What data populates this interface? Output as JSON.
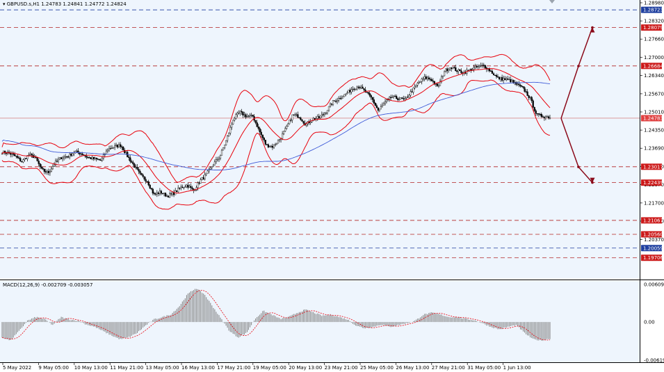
{
  "header": {
    "symbol": "GBPUSD.s,H1",
    "ohlc": "1.24783 1.24841 1.24772 1.24824"
  },
  "colors": {
    "background": "#eef5fd",
    "candle": "#000000",
    "bollinger": "#e8000b",
    "ma": "#3f5bd8",
    "resistance": "#b22222",
    "support": "#1f3f9f",
    "arrow": "#8b0a1a",
    "histogram": "#808080",
    "signal": "#e8000b"
  },
  "chart_data": [
    {
      "type": "candlestick",
      "title": "GBPUSD.s,H1",
      "ylim": [
        1.1932,
        1.2898
      ],
      "y_ticks": [
        "1.28980",
        "1.28320",
        "1.27660",
        "1.27000",
        "1.26340",
        "1.25670",
        "1.25010",
        "1.24350",
        "1.23690",
        "1.23030",
        "1.22370",
        "1.21700",
        "1.21040",
        "1.20370"
      ],
      "x_ticks": [
        "5 May 2022",
        "9 May 05:00",
        "10 May 13:00",
        "11 May 21:00",
        "13 May 05:00",
        "16 May 13:00",
        "17 May 21:00",
        "19 May 05:00",
        "20 May 13:00",
        "23 May 21:00",
        "25 May 05:00",
        "26 May 13:00",
        "27 May 21:00",
        "31 May 05:00",
        "1 Jun 13:00"
      ],
      "close_path": [
        1.2355,
        1.2352,
        1.234,
        1.232,
        1.2345,
        1.2336,
        1.229,
        1.228,
        1.2315,
        1.2336,
        1.234,
        1.2356,
        1.235,
        1.2335,
        1.233,
        1.2325,
        1.2365,
        1.2375,
        1.238,
        1.234,
        1.2305,
        1.227,
        1.225,
        1.22,
        1.221,
        1.2195,
        1.2205,
        1.2225,
        1.2235,
        1.2215,
        1.225,
        1.2275,
        1.231,
        1.234,
        1.24,
        1.2475,
        1.25,
        1.2485,
        1.2485,
        1.243,
        1.238,
        1.2375,
        1.24,
        1.244,
        1.249,
        1.2485,
        1.2455,
        1.2475,
        1.248,
        1.25,
        1.2535,
        1.255,
        1.2565,
        1.2585,
        1.2595,
        1.2575,
        1.255,
        1.2505,
        1.2535,
        1.2555,
        1.255,
        1.2545,
        1.2575,
        1.2605,
        1.2625,
        1.262,
        1.259,
        1.265,
        1.2665,
        1.265,
        1.2645,
        1.2655,
        1.2665,
        1.267,
        1.265,
        1.2625,
        1.262,
        1.2615,
        1.26,
        1.2585,
        1.255,
        1.249,
        1.2485,
        1.2482
      ],
      "price_levels": [
        {
          "label": "1.28723",
          "value": 1.28723,
          "style": "dashed-blue"
        },
        {
          "label": "1.28079",
          "value": 1.28079,
          "style": "dashed-red"
        },
        {
          "label": "1.26684",
          "value": 1.26684,
          "style": "dashed-red"
        },
        {
          "label": "1.24783",
          "value": 1.24783,
          "style": "current-price"
        },
        {
          "label": "1.23017",
          "value": 1.23017,
          "style": "dashed-red"
        },
        {
          "label": "1.22439",
          "value": 1.22439,
          "style": "dashed-red"
        },
        {
          "label": "1.21067",
          "value": 1.21067,
          "style": "dashed-red"
        },
        {
          "label": "1.20560",
          "value": 1.2056,
          "style": "dashed-red"
        },
        {
          "label": "1.20059",
          "value": 1.20059,
          "style": "dashed-blue"
        },
        {
          "label": "1.19706",
          "value": 1.19706,
          "style": "dashed-red"
        }
      ],
      "scenarios": [
        {
          "direction": "up",
          "path": [
            1.2478,
            1.2668,
            1.2808
          ]
        },
        {
          "direction": "down",
          "path": [
            1.2478,
            1.2301,
            1.2244
          ]
        }
      ]
    },
    {
      "type": "bar",
      "title": "MACD(12,26,9) -0.002709 -0.003057",
      "ylim": [
        -0.006193,
        0.006095
      ],
      "y_ticks": [
        "0.006095",
        "0.00",
        "-0.006193"
      ],
      "macd_path": [
        -0.0025,
        -0.003,
        -0.0015,
        0.0002,
        0.0008,
        0.0005,
        -0.0005,
        0.0008,
        0.0004,
        0.0002,
        -0.0004,
        -0.0008,
        -0.0015,
        -0.0022,
        -0.0028,
        -0.0025,
        -0.0018,
        -0.0006,
        0.0004,
        0.0008,
        0.0012,
        0.0025,
        0.0045,
        0.0055,
        0.0045,
        0.0025,
        0.0005,
        -0.0015,
        -0.0025,
        -0.0018,
        0.0005,
        0.0018,
        0.0012,
        0.0005,
        0.0008,
        0.0015,
        0.002,
        0.0015,
        0.001,
        0.0012,
        0.0008,
        0.0004,
        -0.0006,
        -0.001,
        -0.0008,
        -0.0004,
        -0.0008,
        -0.0005,
        -0.0002,
        0.0002,
        0.0012,
        0.0015,
        0.0012,
        0.0008,
        0.0008,
        0.0005,
        0.0003,
        -0.0002,
        -0.0008,
        -0.0012,
        -0.0008,
        -0.0005,
        -0.0018,
        -0.0028,
        -0.003,
        -0.0027
      ]
    }
  ]
}
